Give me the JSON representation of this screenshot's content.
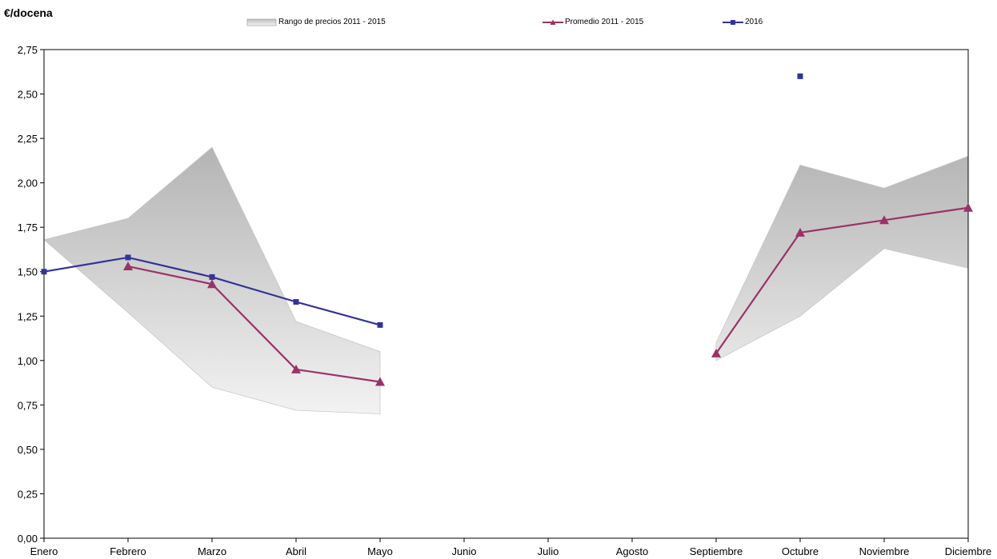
{
  "chart_data": {
    "type": "line",
    "ylabel": "€/docena",
    "xlabel": "",
    "categories": [
      "Enero",
      "Febrero",
      "Marzo",
      "Abril",
      "Mayo",
      "Junio",
      "Julio",
      "Agosto",
      "Septiembre",
      "Octubre",
      "Noviembre",
      "Diciembre"
    ],
    "ylim": [
      0,
      2.75
    ],
    "yticks": [
      "0,00",
      "0,25",
      "0,50",
      "0,75",
      "1,00",
      "1,25",
      "1,50",
      "1,75",
      "2,00",
      "2,25",
      "2,50",
      "2,75"
    ],
    "grid": false,
    "legend_position": "top",
    "range": {
      "name": "Rango de precios 2011 - 2015",
      "min": [
        1.68,
        1.27,
        0.85,
        0.72,
        0.7,
        null,
        null,
        null,
        1.0,
        1.25,
        1.63,
        1.52
      ],
      "max": [
        1.68,
        1.8,
        2.2,
        1.22,
        1.05,
        null,
        null,
        null,
        1.1,
        2.1,
        1.97,
        2.15
      ]
    },
    "series": [
      {
        "name": "Promedio 2011 - 2015",
        "color": "#993366",
        "values": [
          null,
          1.53,
          1.43,
          0.95,
          0.88,
          null,
          null,
          null,
          1.04,
          1.72,
          1.79,
          1.86
        ]
      },
      {
        "name": "2016",
        "color": "#333399",
        "values": [
          1.5,
          1.58,
          1.47,
          1.33,
          1.2,
          null,
          null,
          null,
          null,
          2.6,
          null,
          null
        ]
      }
    ]
  }
}
